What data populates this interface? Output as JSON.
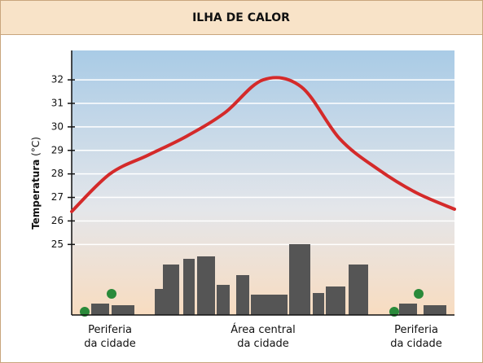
{
  "chart_data": {
    "type": "line",
    "title": "ILHA DE CALOR",
    "y_label": "Temperatura",
    "y_unit": "(°C)",
    "categories": [
      null,
      "Periferia\nda cidade",
      null,
      null,
      null,
      "Área central\nda cidade",
      null,
      null,
      null,
      "Periferia\nda cidade",
      null
    ],
    "series": [
      {
        "name": "Temperatura",
        "color": "#d42a2a",
        "values": [
          26.4,
          28.0,
          28.8,
          29.6,
          30.6,
          32.0,
          31.7,
          29.5,
          28.2,
          27.2,
          26.5
        ]
      }
    ],
    "ylim": [
      22,
      33.25
    ],
    "yticks": [
      25,
      26,
      27,
      28,
      29,
      30,
      31,
      32
    ],
    "grid": true
  }
}
